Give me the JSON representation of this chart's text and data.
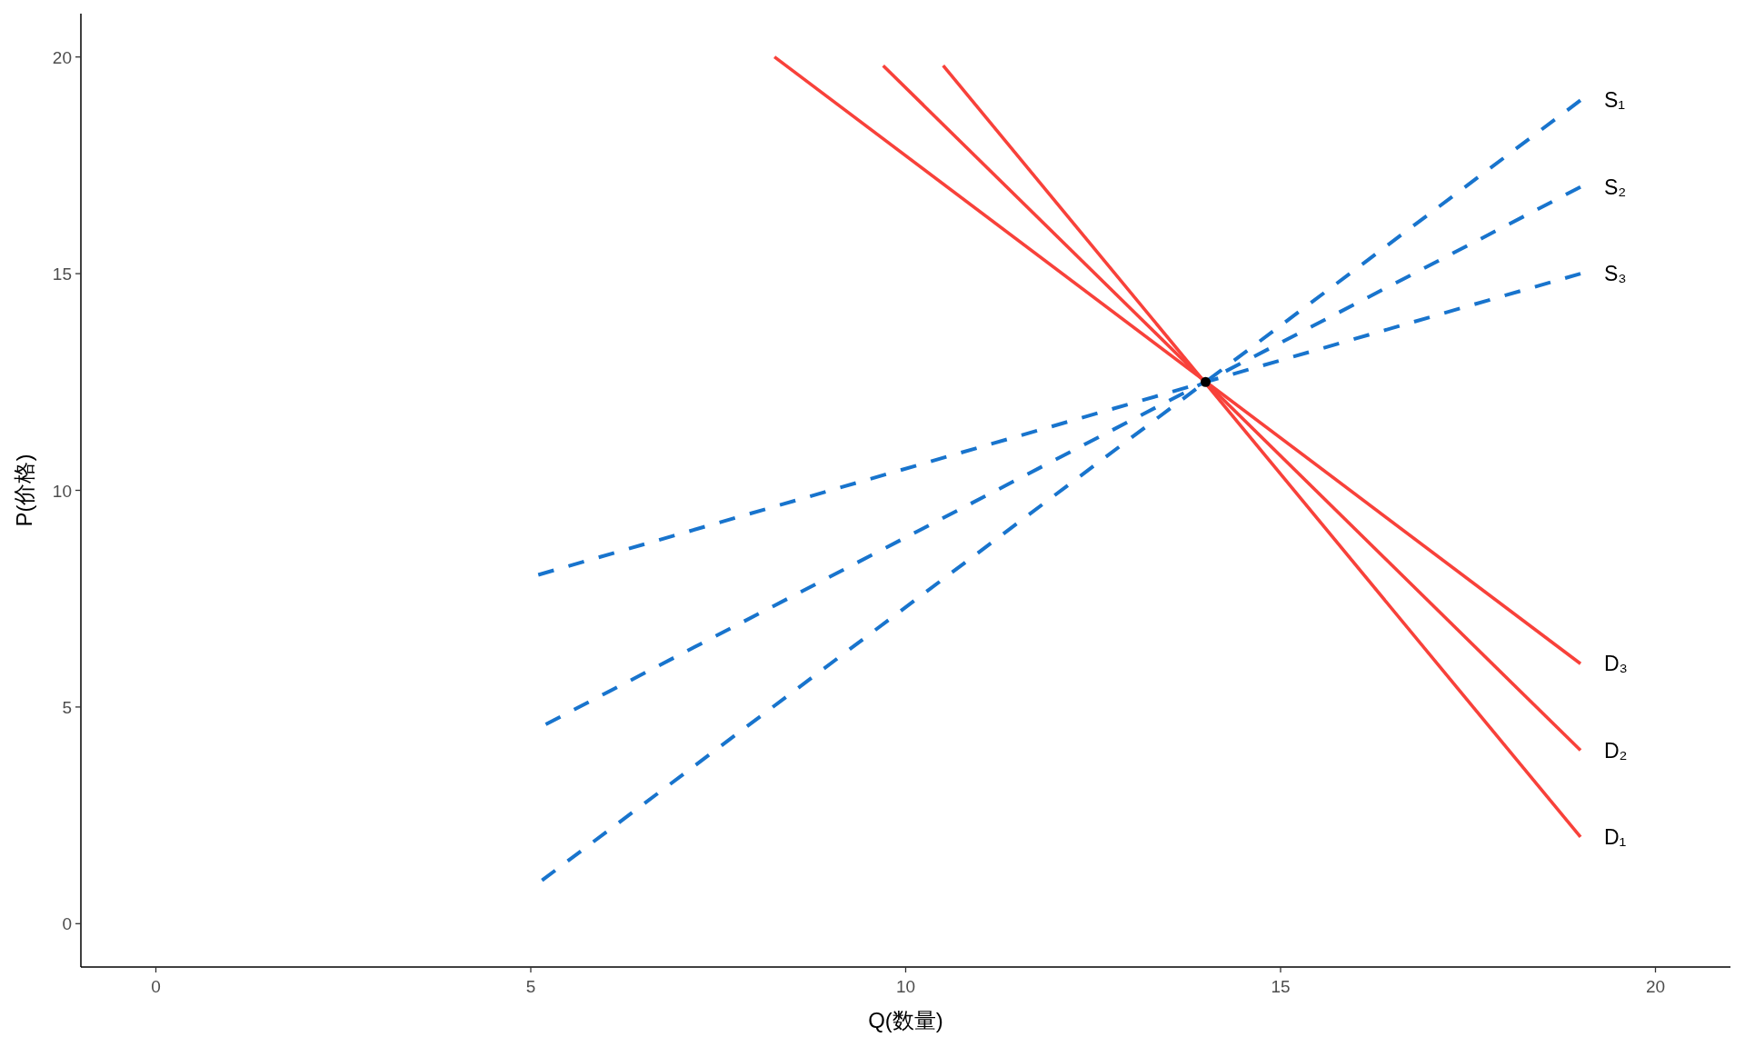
{
  "chart_data": {
    "type": "line",
    "xlabel": "Q(数量)",
    "ylabel": "P(价格)",
    "xlim": [
      -1,
      21
    ],
    "ylim": [
      -1,
      21
    ],
    "xticks": [
      0,
      5,
      10,
      15,
      20
    ],
    "yticks": [
      0,
      5,
      10,
      15,
      20
    ],
    "series": [
      {
        "name": "S₁",
        "color": "#1874cd",
        "line_style": "dashed",
        "x": [
          5.15,
          19
        ],
        "values": [
          1,
          19
        ]
      },
      {
        "name": "S₂",
        "color": "#1874cd",
        "line_style": "dashed",
        "x": [
          5.2,
          19
        ],
        "values": [
          4.6,
          17
        ]
      },
      {
        "name": "S₃",
        "color": "#1874cd",
        "line_style": "dashed",
        "x": [
          5.1,
          19
        ],
        "values": [
          8.05,
          15
        ]
      },
      {
        "name": "D₁",
        "color": "#f8413a",
        "line_style": "solid",
        "x": [
          10.5,
          19
        ],
        "values": [
          19.8,
          2
        ]
      },
      {
        "name": "D₂",
        "color": "#f8413a",
        "line_style": "solid",
        "x": [
          9.7,
          19
        ],
        "values": [
          19.8,
          4
        ]
      },
      {
        "name": "D₃",
        "color": "#f8413a",
        "line_style": "solid",
        "x": [
          8.25,
          19
        ],
        "values": [
          20,
          6
        ]
      },
      {
        "type": "scatter",
        "color": "#000000",
        "marker": "circle",
        "x": [
          14
        ],
        "values": [
          12.5
        ]
      }
    ]
  }
}
